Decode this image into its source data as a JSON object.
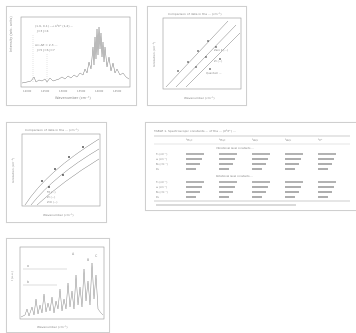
{
  "thumbnails": [
    {
      "kind": "spectrum",
      "ylabel": "Intensity (arb. units)",
      "xlabel": "Wavenumber (cm⁻¹)",
      "legend_top": "(1.9, 0.1) –→ A²Σ⁺ (1,4) ... ",
      "legend_mid": "J=3    J=4",
      "legend_low": "Ar₃ ΔE = 2.3 ... ",
      "legend_bot": "J=5   J=6   J=7",
      "x_ticks": [
        "12000",
        "12500",
        "13000",
        "13500",
        "14000",
        "14500"
      ]
    },
    {
      "kind": "line-plot",
      "title": "Comparison of data in the ... (cm⁻¹)",
      "ylabel": "Ionization (cm⁻¹)",
      "xlabel": "Wavenumber (cm⁻¹)",
      "series": [
        "Zero K (…)",
        "Zr (…)",
        "Quantum …"
      ]
    },
    {
      "kind": "line-plot",
      "title": "Comparison of data in the ... (cm⁻¹)",
      "ylabel": "Ionization (cm⁻¹)",
      "xlabel": "Wavenumber (cm⁻¹)",
      "series": [
        "Fit (…)",
        "Zr (…)",
        "ZrO (…)"
      ]
    },
    {
      "kind": "table",
      "caption": "TABLE 1. Spectroscopic constants ... of the ... (X²Σ⁺) ...",
      "header": [
        "",
        "²Π₁/₂",
        "²Π₃/₂",
        "²Δ₃/₂",
        "²Δ₅/₂",
        "²Σ⁺"
      ],
      "section1": "Vibrational level constants ...",
      "section2": "Rotational level constants ...",
      "row_labels": [
        "T₀ (cm⁻¹)",
        "ω (cm⁻¹)",
        "B₀ (cm⁻¹)",
        "D₀",
        "T₀ (cm⁻¹)",
        "ω (cm⁻¹)",
        "B₀ (cm⁻¹)",
        "D₀"
      ]
    },
    {
      "kind": "spectrum",
      "ylabel": "I (a.u.)",
      "xlabel": "Wavenumber (cm⁻¹)",
      "labels": [
        "A",
        "B",
        "C",
        "a",
        "b"
      ]
    }
  ]
}
